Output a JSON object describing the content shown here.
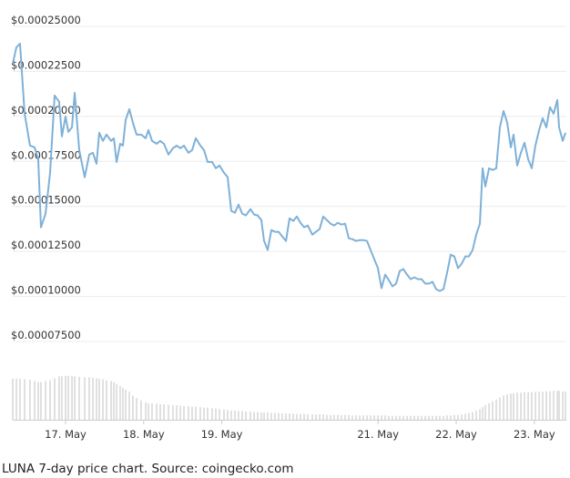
{
  "chart_data": {
    "type": "line",
    "caption": "LUNA 7-day price chart. Source: coingecko.com",
    "color": "#7fb1d8",
    "grid": true,
    "xlim": [
      16.324,
      23.41
    ],
    "ylim": [
      7.5e-05,
      0.00025
    ],
    "xticks": [
      {
        "value": 17,
        "label": "17. May"
      },
      {
        "value": 18,
        "label": "18. May"
      },
      {
        "value": 19,
        "label": "19. May"
      },
      {
        "value": 21,
        "label": "21. May"
      },
      {
        "value": 22,
        "label": "22. May"
      },
      {
        "value": 23,
        "label": "23. May"
      }
    ],
    "yticks": [
      {
        "value": 0.00025,
        "label": "$0.00025000"
      },
      {
        "value": 0.000225,
        "label": "$0.00022500"
      },
      {
        "value": 0.0002,
        "label": "$0.00020000"
      },
      {
        "value": 0.000175,
        "label": "$0.00017500"
      },
      {
        "value": 0.00015,
        "label": "$0.00015000"
      },
      {
        "value": 0.000125,
        "label": "$0.00012500"
      },
      {
        "value": 0.0001,
        "label": "$0.00010000"
      },
      {
        "value": 7.5e-05,
        "label": "$0.00007500"
      }
    ],
    "x": [
      16.324,
      16.371,
      16.417,
      16.476,
      16.545,
      16.604,
      16.65,
      16.685,
      16.744,
      16.802,
      16.86,
      16.918,
      16.953,
      17.0,
      17.035,
      17.082,
      17.117,
      17.175,
      17.245,
      17.303,
      17.35,
      17.396,
      17.431,
      17.478,
      17.524,
      17.583,
      17.618,
      17.653,
      17.699,
      17.734,
      17.769,
      17.816,
      17.862,
      17.909,
      17.967,
      18.026,
      18.061,
      18.107,
      18.166,
      18.212,
      18.259,
      18.317,
      18.375,
      18.422,
      18.469,
      18.515,
      18.573,
      18.62,
      18.667,
      18.725,
      18.772,
      18.818,
      18.876,
      18.923,
      18.97,
      19.028,
      19.075,
      19.121,
      19.168,
      19.214,
      19.261,
      19.308,
      19.366,
      19.413,
      19.459,
      19.506,
      19.541,
      19.587,
      19.634,
      19.681,
      19.727,
      19.774,
      19.821,
      19.867,
      19.914,
      19.96,
      20.007,
      20.054,
      20.1,
      20.159,
      20.205,
      20.252,
      20.298,
      20.345,
      20.392,
      20.438,
      20.485,
      20.531,
      20.578,
      20.625,
      20.671,
      20.718,
      20.765,
      20.811,
      20.858,
      20.904,
      20.951,
      20.998,
      21.044,
      21.091,
      21.137,
      21.184,
      21.231,
      21.277,
      21.324,
      21.371,
      21.417,
      21.464,
      21.511,
      21.557,
      21.604,
      21.65,
      21.697,
      21.744,
      21.79,
      21.837,
      21.883,
      21.93,
      21.977,
      22.023,
      22.07,
      22.117,
      22.163,
      22.21,
      22.256,
      22.303,
      22.338,
      22.373,
      22.42,
      22.466,
      22.513,
      22.559,
      22.606,
      22.653,
      22.699,
      22.734,
      22.781,
      22.828,
      22.874,
      22.921,
      22.967,
      23.014,
      23.061,
      23.107,
      23.154,
      23.2,
      23.247,
      23.294,
      23.317,
      23.364,
      23.399
    ],
    "values": [
      0.0002293,
      0.0002384,
      0.0002404,
      0.0002015,
      0.0001838,
      0.0001828,
      0.0001763,
      0.0001384,
      0.000146,
      0.0001687,
      0.0002116,
      0.0002081,
      0.0001889,
      0.0002,
      0.0001914,
      0.0001939,
      0.0002131,
      0.0001813,
      0.0001662,
      0.0001788,
      0.0001798,
      0.0001737,
      0.0001909,
      0.0001864,
      0.0001899,
      0.0001864,
      0.0001879,
      0.0001747,
      0.0001848,
      0.0001838,
      0.000198,
      0.000204,
      0.0001965,
      0.0001899,
      0.0001899,
      0.0001879,
      0.0001924,
      0.0001864,
      0.0001848,
      0.0001864,
      0.0001848,
      0.0001788,
      0.0001823,
      0.0001838,
      0.0001823,
      0.0001838,
      0.0001798,
      0.0001813,
      0.0001879,
      0.0001838,
      0.0001813,
      0.0001747,
      0.0001747,
      0.0001712,
      0.0001727,
      0.0001687,
      0.0001662,
      0.0001475,
      0.0001465,
      0.000151,
      0.000146,
      0.000145,
      0.0001485,
      0.0001455,
      0.000145,
      0.0001424,
      0.0001308,
      0.0001258,
      0.0001369,
      0.0001359,
      0.0001359,
      0.0001333,
      0.0001308,
      0.0001434,
      0.0001419,
      0.0001444,
      0.0001409,
      0.0001384,
      0.0001394,
      0.0001343,
      0.0001359,
      0.0001374,
      0.0001444,
      0.0001424,
      0.0001404,
      0.0001394,
      0.0001409,
      0.0001399,
      0.0001404,
      0.0001323,
      0.0001318,
      0.0001308,
      0.0001313,
      0.0001313,
      0.0001308,
      0.0001258,
      0.0001207,
      0.0001157,
      0.0001046,
      0.0001121,
      0.0001091,
      0.0001056,
      0.0001071,
      0.0001141,
      0.0001152,
      0.0001121,
      0.0001096,
      0.0001106,
      0.0001096,
      0.0001096,
      0.0001071,
      0.0001071,
      0.0001081,
      0.000104,
      0.000103,
      0.000104,
      0.0001131,
      0.0001232,
      0.0001222,
      0.0001157,
      0.0001182,
      0.0001222,
      0.0001222,
      0.0001258,
      0.0001343,
      0.0001404,
      0.0001712,
      0.0001611,
      0.0001712,
      0.0001702,
      0.0001712,
      0.0001939,
      0.000203,
      0.0001965,
      0.0001828,
      0.0001899,
      0.0001727,
      0.0001798,
      0.0001854,
      0.0001763,
      0.0001712,
      0.0001838,
      0.0001924,
      0.000199,
      0.0001939,
      0.0002051,
      0.0002015,
      0.0002091,
      0.0001939,
      0.0001864,
      0.0001909
    ],
    "volume": {
      "lim": [
        0,
        100
      ],
      "color": "#cccccc",
      "values": [
        85,
        85,
        85,
        84,
        83,
        80,
        78,
        78,
        80,
        82,
        86,
        90,
        91,
        91,
        91,
        90,
        90,
        89,
        88,
        88,
        87,
        86,
        85,
        84,
        82,
        80,
        78,
        74,
        70,
        66,
        62,
        58,
        50,
        45,
        40,
        36,
        34,
        34,
        33,
        32,
        32,
        31,
        30,
        30,
        29,
        28,
        28,
        27,
        27,
        26,
        25,
        25,
        24,
        23,
        22,
        21,
        20,
        19,
        19,
        18,
        18,
        17,
        17,
        16,
        16,
        15,
        15,
        15,
        14,
        14,
        14,
        13,
        13,
        13,
        12,
        12,
        12,
        12,
        11,
        11,
        11,
        11,
        11,
        10,
        10,
        10,
        10,
        10,
        10,
        10,
        9,
        9,
        9,
        9,
        9,
        9,
        9,
        9,
        9,
        9,
        8,
        8,
        8,
        8,
        8,
        8,
        8,
        8,
        8,
        8,
        8,
        8,
        8,
        8,
        8,
        8,
        9,
        9,
        10,
        10,
        11,
        12,
        14,
        16,
        19,
        22,
        26,
        30,
        34,
        38,
        42,
        46,
        50,
        52,
        54,
        55,
        56,
        56,
        57,
        57,
        57,
        58,
        58,
        58,
        59,
        59,
        60,
        60,
        60,
        59,
        58
      ]
    }
  }
}
